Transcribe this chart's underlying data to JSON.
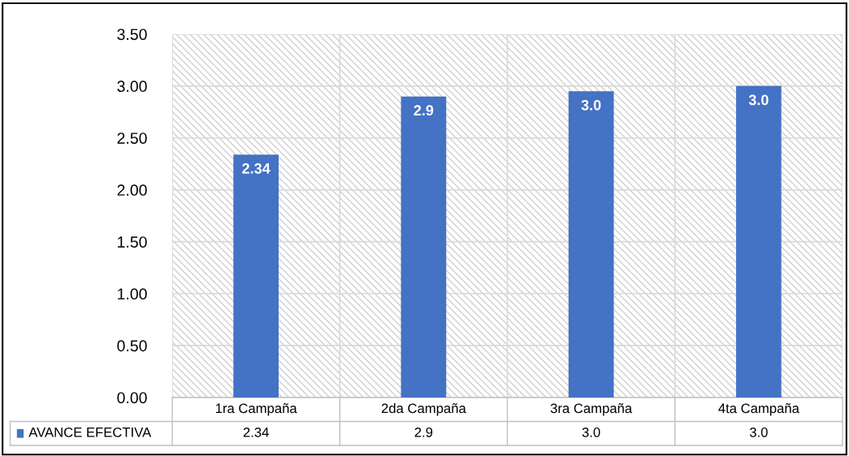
{
  "chart_data": {
    "type": "bar",
    "categories": [
      "1ra Campaña",
      "2da Campaña",
      "3ra Campaña",
      "4ta Campaña"
    ],
    "series": [
      {
        "name": "AVANCE EFECTIVA",
        "color": "#4472c4",
        "values": [
          2.34,
          2.9,
          2.95,
          3.0
        ],
        "value_labels": [
          "2.34",
          "2.9",
          "3.0",
          "3.0"
        ]
      }
    ],
    "ylim": [
      0,
      3.5
    ],
    "yticks": [
      "0.00",
      "0.50",
      "1.00",
      "1.50",
      "2.00",
      "2.50",
      "3.00",
      "3.50"
    ],
    "grid": "y",
    "legend": "bottom"
  }
}
